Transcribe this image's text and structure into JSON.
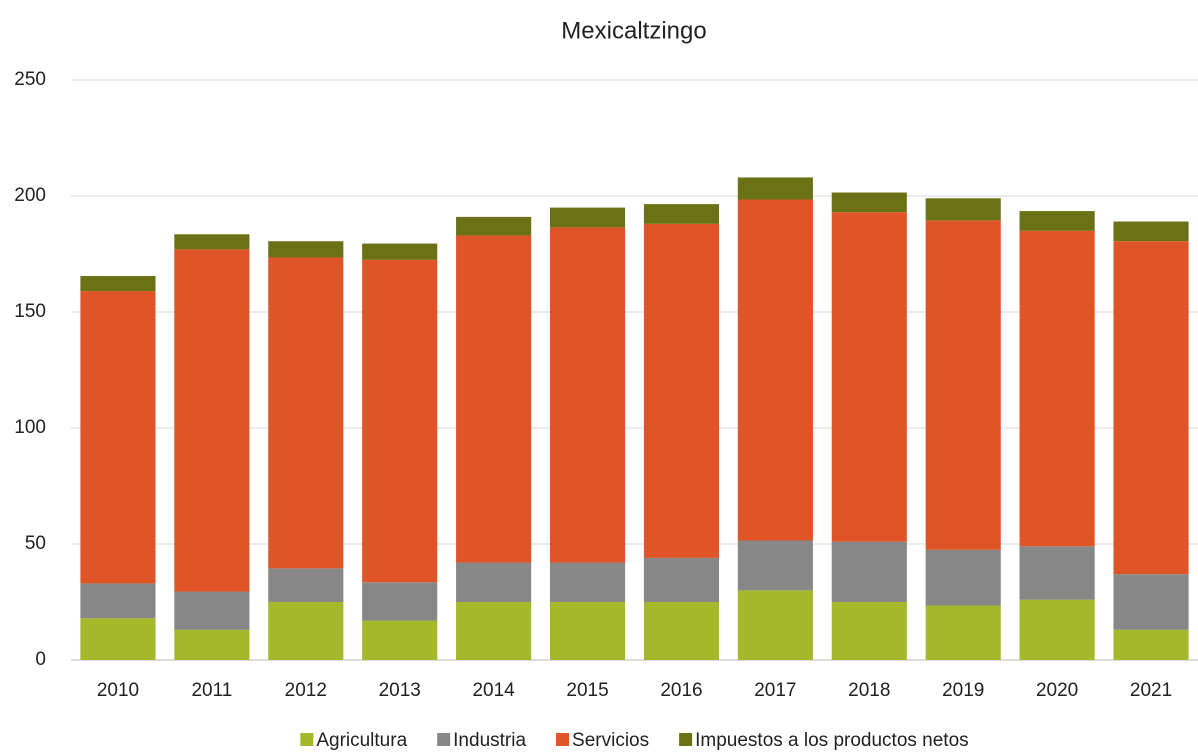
{
  "chart_data": {
    "type": "stacked_bar",
    "title": "Mexicaltzingo",
    "categories": [
      "2010",
      "2011",
      "2012",
      "2013",
      "2014",
      "2015",
      "2016",
      "2017",
      "2018",
      "2019",
      "2020",
      "2021"
    ],
    "series": [
      {
        "name": "Agricultura",
        "color": "#a5b82a",
        "values": [
          18,
          13,
          25,
          17,
          25,
          25,
          25,
          30,
          25,
          23.5,
          26,
          13
        ]
      },
      {
        "name": "Industria",
        "color": "#878787",
        "values": [
          15,
          16.5,
          14.5,
          16.5,
          17,
          17,
          19,
          21.5,
          26,
          24,
          23,
          24
        ]
      },
      {
        "name": "Servicios",
        "color": "#e05527",
        "values": [
          126,
          147.5,
          134,
          139,
          141,
          144.5,
          144,
          147,
          142,
          142,
          136,
          143.5
        ]
      },
      {
        "name": "Impuestos a los productos netos",
        "color": "#6b7216",
        "values": [
          6.5,
          6.5,
          7,
          7,
          8,
          8.5,
          8.5,
          9.5,
          8.5,
          9.5,
          8.5,
          8.5
        ]
      }
    ],
    "ylim": [
      0,
      250
    ],
    "yticks": [
      0,
      50,
      100,
      150,
      200,
      250
    ],
    "grid": true,
    "legend": "bottom"
  }
}
